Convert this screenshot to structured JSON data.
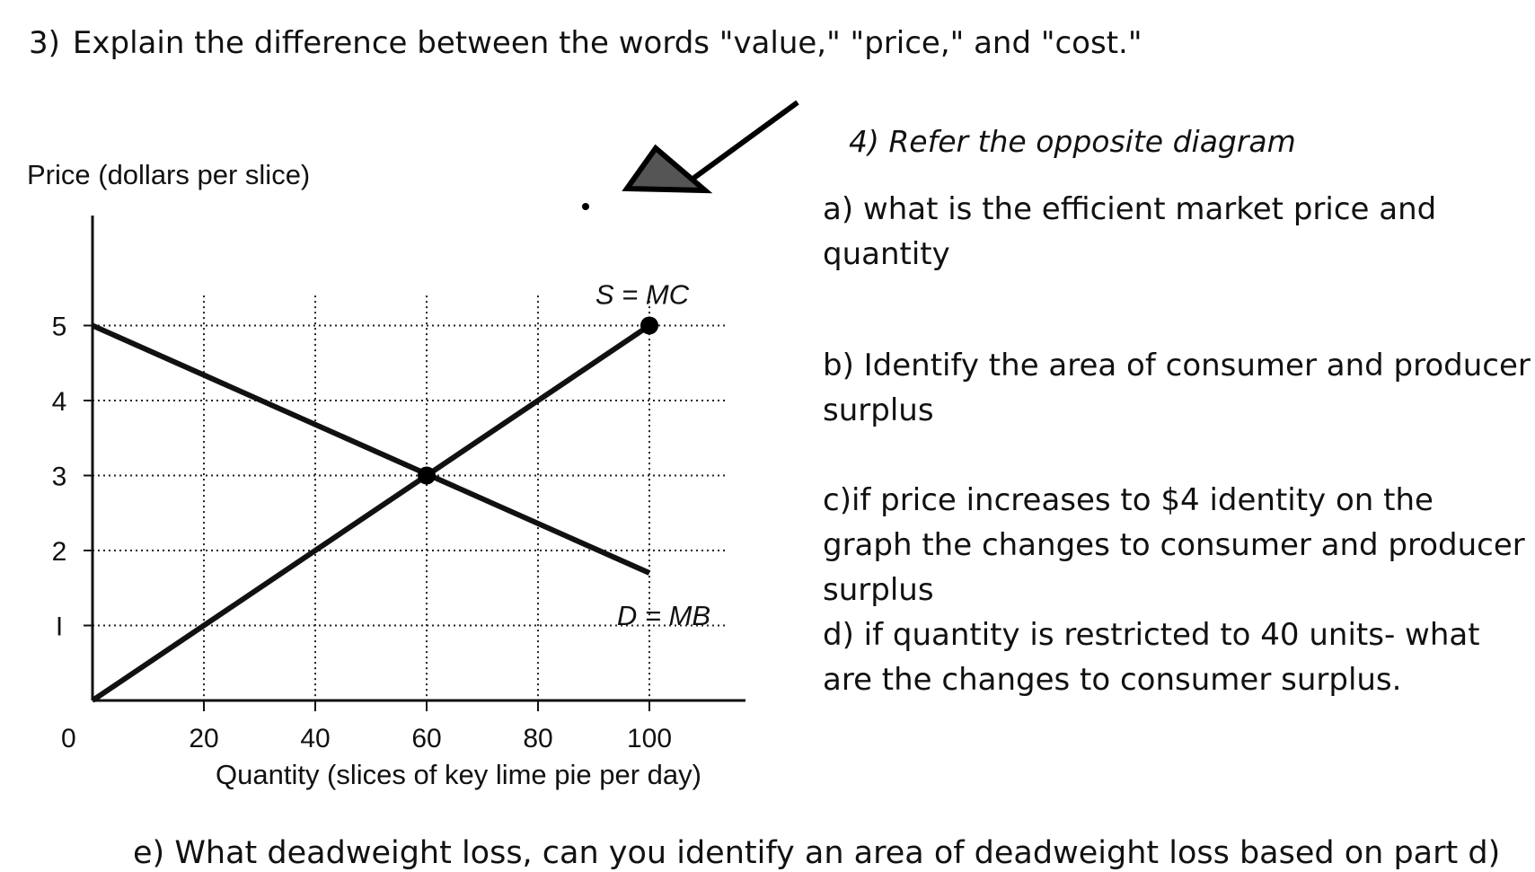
{
  "question3": {
    "number": "3)",
    "text": "Explain the difference between the words \"value,\" \"price,\" and \"cost.\""
  },
  "question4": {
    "title": "4) Refer the opposite diagram",
    "a": "a) what is the efficient market price and quantity",
    "b": "b) Identify the area of consumer and producer surplus",
    "c": "c)if price increases to $4 identity on the graph the changes to consumer and producer surplus",
    "d": "d) if quantity is restricted to 40 units- what are the changes to consumer surplus.",
    "e": "e) What deadweight loss, can you identify an area of deadweight loss based on part d)"
  },
  "arrow": {
    "color": "#555555",
    "icon": "arrow-pointer-icon"
  },
  "chart_data": {
    "type": "line",
    "ylabel": "Price (dollars per slice)",
    "xlabel": "Quantity (slices of key lime pie per day)",
    "xlim": [
      0,
      115
    ],
    "ylim": [
      0,
      5.5
    ],
    "origin_label": "0",
    "x_ticks": [
      20,
      40,
      60,
      80,
      100
    ],
    "x_tick_labels": [
      "20",
      "40",
      "60",
      "80",
      "100"
    ],
    "y_ticks": [
      1,
      2,
      3,
      4,
      5
    ],
    "y_tick_labels": [
      "I",
      "2",
      "3",
      "4",
      "5"
    ],
    "grid": "dotted",
    "series": [
      {
        "name": "S = MC",
        "x": [
          0,
          100
        ],
        "y": [
          0,
          5
        ]
      },
      {
        "name": "D = MB",
        "x": [
          0,
          100
        ],
        "y": [
          5,
          1.7
        ]
      }
    ],
    "points": [
      {
        "x": 60,
        "y": 3
      },
      {
        "x": 100,
        "y": 5
      }
    ]
  }
}
